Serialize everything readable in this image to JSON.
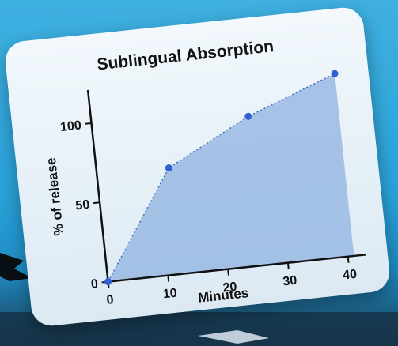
{
  "chart_data": {
    "type": "area",
    "title": "Sublingual Absorption",
    "xlabel": "Minutes",
    "ylabel": "% of release",
    "xlim": [
      0,
      42
    ],
    "ylim": [
      0,
      115
    ],
    "xticks": [
      0,
      10,
      20,
      30,
      40
    ],
    "yticks": [
      0,
      50,
      100
    ],
    "grid": false,
    "series": [
      {
        "x": [
          0,
          12,
          26,
          41
        ],
        "y": [
          0,
          67,
          94,
          115
        ]
      }
    ],
    "colors": {
      "fill": "#8fb2e0",
      "line": "#3f6fc0",
      "point": "#2f5fd0",
      "axis": "#111111"
    }
  }
}
